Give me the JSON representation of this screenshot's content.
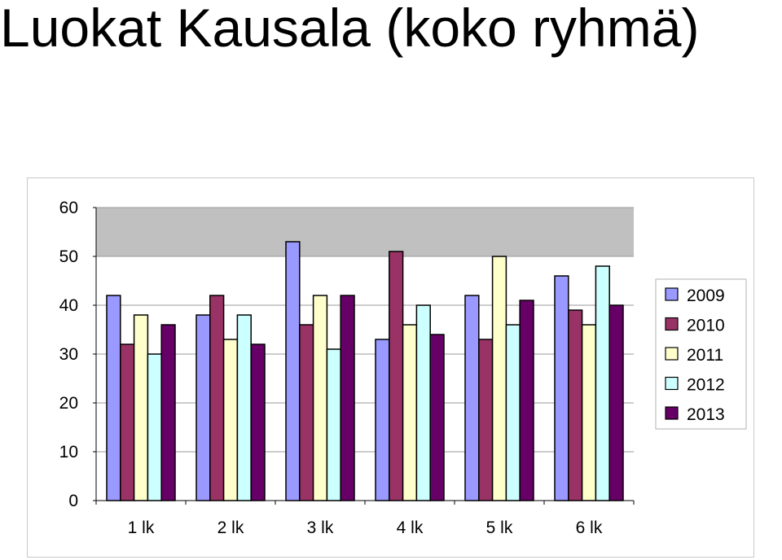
{
  "title": "Luokat Kausala (koko ryhmä)",
  "chart_data": {
    "type": "bar",
    "categories": [
      "1 lk",
      "2 lk",
      "3 lk",
      "4 lk",
      "5 lk",
      "6 lk"
    ],
    "series": [
      {
        "name": "2009",
        "color": "#9999ff",
        "values": [
          42,
          38,
          53,
          33,
          42,
          46
        ]
      },
      {
        "name": "2010",
        "color": "#993366",
        "values": [
          32,
          42,
          36,
          51,
          33,
          39
        ]
      },
      {
        "name": "2011",
        "color": "#ffffcc",
        "values": [
          38,
          33,
          42,
          36,
          50,
          36
        ]
      },
      {
        "name": "2012",
        "color": "#ccffff",
        "values": [
          30,
          38,
          31,
          40,
          36,
          48
        ]
      },
      {
        "name": "2013",
        "color": "#660066",
        "values": [
          36,
          32,
          42,
          34,
          41,
          40
        ]
      }
    ],
    "ylim": [
      0,
      60
    ],
    "yticks": [
      0,
      10,
      20,
      30,
      40,
      50,
      60
    ],
    "grid": true,
    "legend": "right",
    "plot_background": "#c0c0c0"
  }
}
